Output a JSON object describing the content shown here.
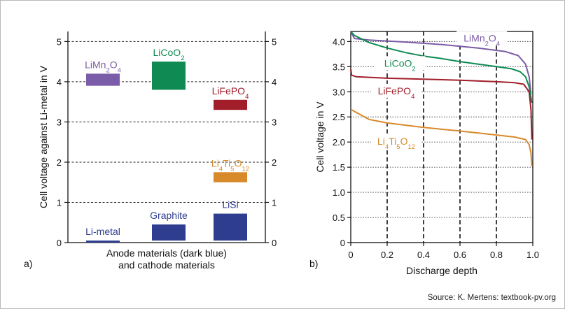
{
  "source": "Source: K. Mertens: textbook-pv.org",
  "chart_data": [
    {
      "panel": "a)",
      "type": "bar",
      "ylabel": "Cell voltage against Li-metal in V",
      "xlabel": [
        "Anode materials (dark blue)",
        "and cathode materials"
      ],
      "ylim": [
        0,
        5.25
      ],
      "yticks": [
        "0",
        "1",
        "2",
        "3",
        "4",
        "5"
      ],
      "grid": "horizontal dashed",
      "materials": [
        {
          "label": "LiMn2O4",
          "label_base": "LiMn",
          "label_sub": "2",
          "label_rest": "O",
          "label_sub2": "4",
          "range": [
            3.9,
            4.2
          ],
          "color": "#7b5ca8",
          "col": 0
        },
        {
          "label": "LiCoO2",
          "label_base": "LiCoO",
          "label_sub": "2",
          "label_rest": "",
          "label_sub2": "",
          "range": [
            3.8,
            4.5
          ],
          "color": "#0e8a52",
          "col": 1
        },
        {
          "label": "LiFePO4",
          "label_base": "LiFePO",
          "label_sub": "4",
          "label_rest": "",
          "label_sub2": "",
          "range": [
            3.3,
            3.55
          ],
          "color": "#a11e2a",
          "col": 2
        },
        {
          "label": "Li4Ti5O12",
          "label_base": "Li",
          "label_sub": "4",
          "label_rest": "Ti",
          "label_sub2": "5",
          "label_rest2": "O",
          "label_sub3": "12",
          "range": [
            1.5,
            1.75
          ],
          "color": "#d8892a",
          "col": 2
        },
        {
          "label": "Li-metal",
          "label_base": "Li-metal",
          "label_sub": "",
          "label_rest": "",
          "label_sub2": "",
          "range": [
            0,
            0.05
          ],
          "color": "#2e3d8f",
          "col": 0
        },
        {
          "label": "Graphite",
          "label_base": "Graphite",
          "label_sub": "",
          "label_rest": "",
          "label_sub2": "",
          "range": [
            0.05,
            0.45
          ],
          "color": "#2e3d8f",
          "col": 1
        },
        {
          "label": "LiSi",
          "label_base": "LiSi",
          "label_sub": "",
          "label_rest": "",
          "label_sub2": "",
          "range": [
            0.05,
            0.72
          ],
          "color": "#2e3d8f",
          "col": 2
        }
      ]
    },
    {
      "panel": "b)",
      "type": "line",
      "xlabel": "Discharge depth",
      "ylabel": "Cell voltage in V",
      "xlim": [
        0,
        1
      ],
      "ylim": [
        0,
        4.2
      ],
      "xticks": [
        "0",
        "0.2",
        "0.4",
        "0.6",
        "0.8",
        "1.0"
      ],
      "yticks": [
        "0",
        "0.5",
        "1.0",
        "1.5",
        "2.0",
        "2.5",
        "3.0",
        "3.5",
        "4.0"
      ],
      "grid": "horizontal dotted, vertical dashed",
      "series": [
        {
          "name": "LiMn2O4",
          "color": "#7b5ca8",
          "points": [
            [
              0,
              4.2
            ],
            [
              0.02,
              4.06
            ],
            [
              0.1,
              4.03
            ],
            [
              0.3,
              3.99
            ],
            [
              0.5,
              3.94
            ],
            [
              0.7,
              3.87
            ],
            [
              0.85,
              3.8
            ],
            [
              0.92,
              3.72
            ],
            [
              0.96,
              3.55
            ],
            [
              0.98,
              3.3
            ],
            [
              0.99,
              2.95
            ]
          ]
        },
        {
          "name": "LiCoO2",
          "color": "#0e8a52",
          "points": [
            [
              0,
              4.2
            ],
            [
              0.02,
              4.12
            ],
            [
              0.1,
              3.98
            ],
            [
              0.2,
              3.87
            ],
            [
              0.3,
              3.78
            ],
            [
              0.4,
              3.71
            ],
            [
              0.5,
              3.66
            ],
            [
              0.6,
              3.6
            ],
            [
              0.7,
              3.55
            ],
            [
              0.8,
              3.5
            ],
            [
              0.88,
              3.46
            ],
            [
              0.93,
              3.4
            ],
            [
              0.96,
              3.3
            ],
            [
              0.98,
              3.1
            ],
            [
              0.995,
              2.78
            ]
          ]
        },
        {
          "name": "LiFePO4",
          "color": "#a11e2a",
          "points": [
            [
              0,
              3.45
            ],
            [
              0.005,
              3.33
            ],
            [
              0.03,
              3.3
            ],
            [
              0.2,
              3.27
            ],
            [
              0.4,
              3.25
            ],
            [
              0.6,
              3.23
            ],
            [
              0.8,
              3.2
            ],
            [
              0.9,
              3.18
            ],
            [
              0.95,
              3.15
            ],
            [
              0.98,
              3.0
            ],
            [
              0.99,
              2.65
            ],
            [
              0.995,
              2.05
            ]
          ]
        },
        {
          "name": "Li4Ti5O12",
          "color": "#d8892a",
          "points": [
            [
              0,
              2.65
            ],
            [
              0.05,
              2.55
            ],
            [
              0.1,
              2.45
            ],
            [
              0.2,
              2.38
            ],
            [
              0.4,
              2.29
            ],
            [
              0.6,
              2.22
            ],
            [
              0.8,
              2.14
            ],
            [
              0.9,
              2.1
            ],
            [
              0.96,
              2.05
            ],
            [
              0.98,
              1.95
            ],
            [
              0.99,
              1.78
            ],
            [
              0.995,
              1.52
            ]
          ]
        }
      ],
      "labels": [
        {
          "series": "LiMn2O4",
          "base": "LiMn",
          "sub": "2",
          "rest": "O",
          "sub2": "4",
          "x": 0.72,
          "y": 4.0,
          "color": "#7b5ca8"
        },
        {
          "series": "LiCoO2",
          "base": "LiCoO",
          "sub": "2",
          "rest": "",
          "sub2": "",
          "x": 0.27,
          "y": 3.5,
          "color": "#0e8a52"
        },
        {
          "series": "LiFePO4",
          "base": "LiFePO",
          "sub": "4",
          "rest": "",
          "sub2": "",
          "x": 0.25,
          "y": 2.95,
          "color": "#a11e2a"
        },
        {
          "series": "Li4Ti5O12",
          "base": "Li",
          "sub": "4",
          "rest": "Ti",
          "sub2": "5",
          "rest2": "O",
          "sub3": "12",
          "x": 0.25,
          "y": 1.95,
          "color": "#d8892a"
        }
      ]
    }
  ]
}
